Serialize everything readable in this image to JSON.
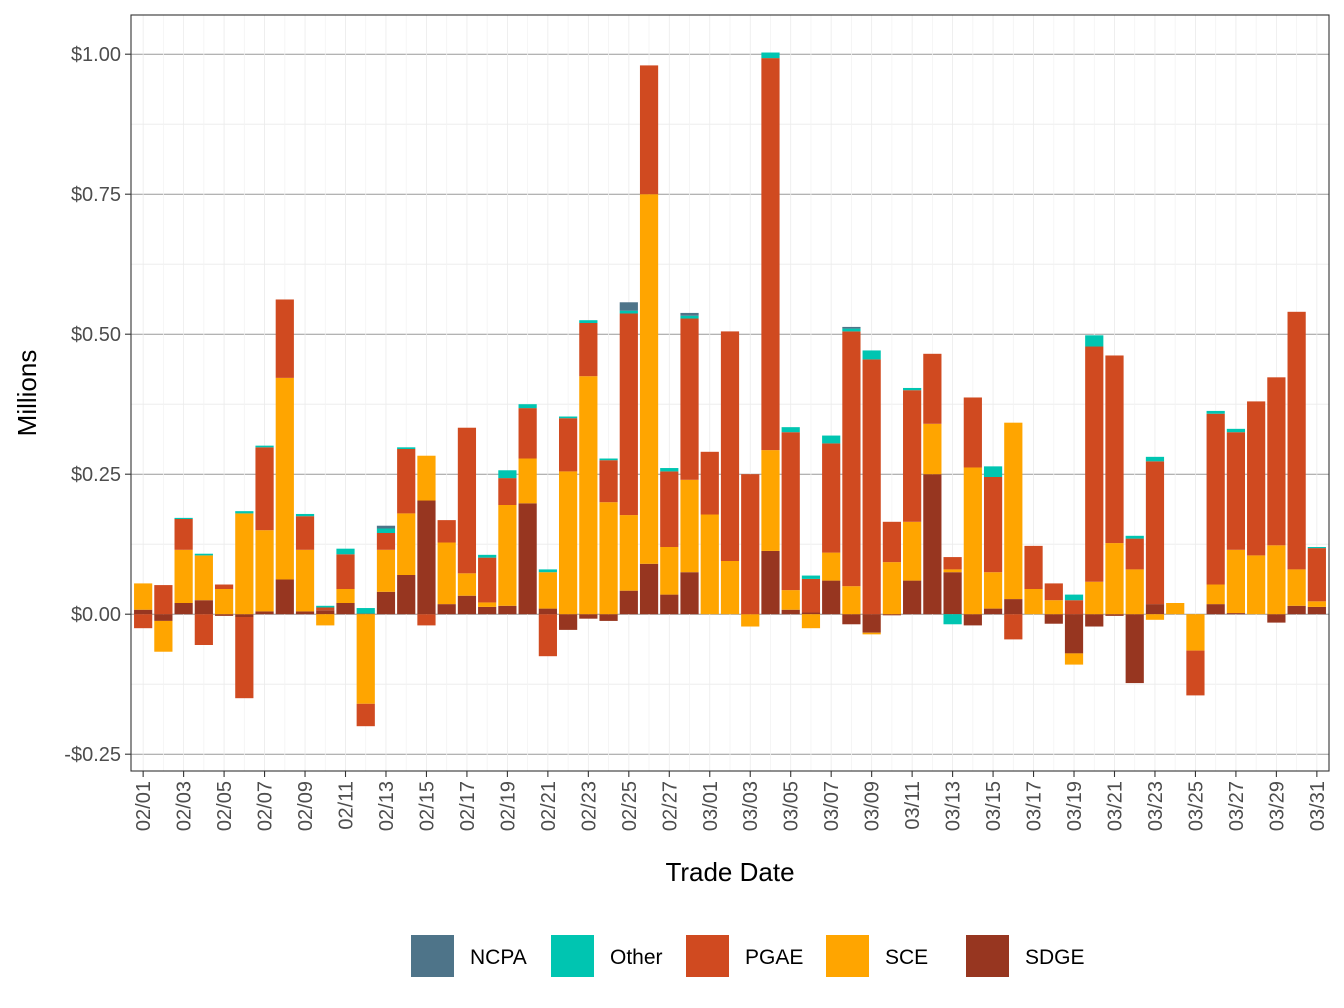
{
  "chart_data": {
    "type": "bar",
    "stacked": true,
    "title": "",
    "xlabel": "Trade Date",
    "ylabel": "Millions",
    "ylim": [
      -0.28,
      1.07
    ],
    "y_ticks": [
      {
        "value": -0.25,
        "label": "-$0.25"
      },
      {
        "value": 0.0,
        "label": "$0.00"
      },
      {
        "value": 0.25,
        "label": "$0.25"
      },
      {
        "value": 0.5,
        "label": "$0.50"
      },
      {
        "value": 0.75,
        "label": "$0.75"
      },
      {
        "value": 1.0,
        "label": "$1.00"
      }
    ],
    "grid": true,
    "legend_position": "bottom",
    "categories": [
      "02/01",
      "02/02",
      "02/03",
      "02/04",
      "02/05",
      "02/06",
      "02/07",
      "02/08",
      "02/09",
      "02/10",
      "02/11",
      "02/12",
      "02/13",
      "02/14",
      "02/15",
      "02/16",
      "02/17",
      "02/18",
      "02/19",
      "02/20",
      "02/21",
      "02/22",
      "02/23",
      "02/24",
      "02/25",
      "02/26",
      "02/27",
      "02/28",
      "03/01",
      "03/02",
      "03/03",
      "03/04",
      "03/05",
      "03/06",
      "03/07",
      "03/08",
      "03/09",
      "03/10",
      "03/11",
      "03/12",
      "03/13",
      "03/14",
      "03/15",
      "03/16",
      "03/17",
      "03/18",
      "03/19",
      "03/20",
      "03/21",
      "03/22",
      "03/23",
      "03/24",
      "03/25",
      "03/26",
      "03/27",
      "03/28",
      "03/29",
      "03/30",
      "03/31"
    ],
    "x_tick_labels": [
      "02/01",
      "02/03",
      "02/05",
      "02/07",
      "02/09",
      "02/11",
      "02/13",
      "02/15",
      "02/17",
      "02/19",
      "02/21",
      "02/23",
      "02/25",
      "02/27",
      "03/01",
      "03/03",
      "03/05",
      "03/07",
      "03/09",
      "03/11",
      "03/13",
      "03/15",
      "03/17",
      "03/19",
      "03/21",
      "03/23",
      "03/25",
      "03/27",
      "03/29",
      "03/31"
    ],
    "stack_order": [
      "SDGE",
      "SCE",
      "PGAE",
      "Other",
      "NCPA"
    ],
    "series": [
      {
        "name": "NCPA",
        "color": "#4e7489",
        "values": [
          0,
          0,
          0,
          0,
          0,
          0,
          0,
          0,
          0,
          0,
          0,
          0,
          0.005,
          0,
          0,
          0,
          0,
          0,
          0,
          0,
          0,
          0,
          0,
          0,
          0.015,
          0,
          0,
          0.005,
          0,
          0,
          0,
          0,
          0,
          0,
          0,
          0.003,
          0,
          0,
          0,
          0,
          0,
          0,
          0,
          0,
          0,
          0,
          0,
          0,
          0,
          0,
          0,
          0,
          0,
          0,
          0,
          0,
          0,
          0,
          0
        ]
      },
      {
        "name": "Other",
        "color": "#00c5b1",
        "values": [
          0,
          0,
          0.002,
          0.003,
          0,
          0.004,
          0.003,
          0,
          0.004,
          0.003,
          0.01,
          0.01,
          0.008,
          0.003,
          0,
          0,
          0,
          0.005,
          0.014,
          0.007,
          0.005,
          0.003,
          0.005,
          0.003,
          0.005,
          0,
          0.006,
          0.005,
          0,
          0,
          0,
          0.01,
          0.009,
          0.006,
          0.014,
          0.005,
          0.016,
          0,
          0.004,
          0,
          -0.018,
          0,
          0.019,
          0,
          0,
          0,
          0.01,
          0.02,
          0,
          0.005,
          0.008,
          0,
          0,
          0.005,
          0.006,
          0,
          0,
          0,
          0.002
        ]
      },
      {
        "name": "PGAE",
        "color": "#d04a20",
        "values": [
          -0.025,
          0.052,
          0.055,
          -0.055,
          0.008,
          -0.145,
          0.148,
          0.14,
          0.06,
          0.005,
          0.062,
          -0.04,
          0.03,
          0.115,
          -0.02,
          0.04,
          0.26,
          0.08,
          0.048,
          0.09,
          -0.075,
          0.095,
          0.095,
          0.075,
          0.36,
          0.23,
          0.135,
          0.288,
          0.112,
          0.41,
          0.25,
          0.7,
          0.282,
          0.06,
          0.195,
          0.455,
          0.455,
          0.072,
          0.235,
          0.125,
          0.022,
          0.125,
          0.17,
          -0.045,
          0.077,
          0.03,
          0.025,
          0.42,
          0.335,
          0.055,
          0.255,
          0.0,
          -0.08,
          0.305,
          0.21,
          0.275,
          0.3,
          0.46,
          0.095
        ]
      },
      {
        "name": "SCE",
        "color": "#ffa500",
        "values": [
          0.047,
          -0.055,
          0.095,
          0.08,
          0.045,
          0.18,
          0.145,
          0.36,
          0.11,
          -0.02,
          0.025,
          -0.16,
          0.075,
          0.11,
          0.08,
          0.11,
          0.04,
          0.008,
          0.18,
          0.08,
          0.065,
          0.255,
          0.425,
          0.2,
          0.135,
          0.66,
          0.085,
          0.165,
          0.178,
          0.095,
          -0.022,
          0.18,
          0.035,
          -0.025,
          0.05,
          0.05,
          -0.003,
          0.093,
          0.105,
          0.09,
          0.005,
          0.262,
          0.065,
          0.315,
          0.045,
          0.025,
          -0.02,
          0.058,
          0.127,
          0.08,
          -0.01,
          0.02,
          -0.065,
          0.035,
          0.113,
          0.105,
          0.123,
          0.065,
          0.01
        ]
      },
      {
        "name": "SDGE",
        "color": "#973620",
        "values": [
          0.008,
          -0.012,
          0.02,
          0.025,
          -0.003,
          -0.005,
          0.005,
          0.062,
          0.005,
          0.007,
          0.02,
          0.001,
          0.04,
          0.07,
          0.203,
          0.018,
          0.033,
          0.013,
          0.015,
          0.198,
          0.01,
          -0.028,
          -0.008,
          -0.012,
          0.042,
          0.09,
          0.035,
          0.075,
          0,
          0,
          0,
          0.113,
          0.008,
          0.003,
          0.06,
          -0.018,
          -0.033,
          -0.002,
          0.06,
          0.25,
          0.075,
          -0.02,
          0.01,
          0.027,
          0,
          -0.017,
          -0.07,
          -0.022,
          -0.003,
          -0.123,
          0.018,
          0,
          0,
          0.018,
          0.002,
          0,
          -0.015,
          0.015,
          0.013
        ]
      }
    ]
  }
}
